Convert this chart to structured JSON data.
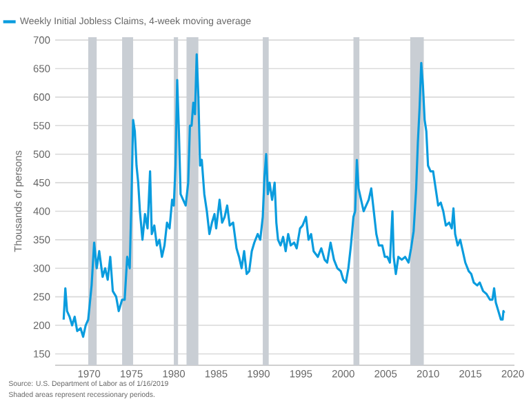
{
  "chart_data": {
    "type": "line",
    "ylabel": "Thousands of persons",
    "annotations": [
      "Source: U.S. Department of Labor as of 1/16/2019",
      "Shaded areas represent recessionary periods."
    ],
    "xlim": [
      1966,
      2020.2
    ],
    "ylim": [
      130,
      705
    ],
    "xticks": [
      1970,
      1975,
      1980,
      1985,
      1990,
      1995,
      2000,
      2005,
      2010,
      2015,
      2020
    ],
    "yticks": [
      150,
      200,
      250,
      300,
      350,
      400,
      450,
      500,
      550,
      600,
      650,
      700
    ],
    "grid": "y",
    "legend": "top left",
    "bands": [
      {
        "axis": "x",
        "from": 1969.9,
        "to": 1970.9,
        "color": "#c9ced4"
      },
      {
        "axis": "x",
        "from": 1973.9,
        "to": 1975.2,
        "color": "#c9ced4"
      },
      {
        "axis": "x",
        "from": 1980.0,
        "to": 1980.5,
        "color": "#c9ced4"
      },
      {
        "axis": "x",
        "from": 1981.5,
        "to": 1982.9,
        "color": "#c9ced4"
      },
      {
        "axis": "x",
        "from": 1990.5,
        "to": 1991.2,
        "color": "#c9ced4"
      },
      {
        "axis": "x",
        "from": 2001.2,
        "to": 2001.9,
        "color": "#c9ced4"
      },
      {
        "axis": "x",
        "from": 2007.9,
        "to": 2009.5,
        "color": "#c9ced4"
      }
    ],
    "series": [
      {
        "name": "Weekly Initial Jobless Claims, 4-week moving average",
        "color": "#0a9cde",
        "x": [
          1967.0,
          1967.2,
          1967.4,
          1967.7,
          1968.0,
          1968.3,
          1968.6,
          1969.0,
          1969.3,
          1969.6,
          1969.9,
          1970.3,
          1970.6,
          1970.9,
          1971.2,
          1971.6,
          1971.9,
          1972.2,
          1972.5,
          1972.8,
          1973.2,
          1973.5,
          1973.9,
          1974.2,
          1974.5,
          1974.8,
          1975.0,
          1975.2,
          1975.4,
          1975.6,
          1975.8,
          1976.0,
          1976.3,
          1976.6,
          1976.9,
          1977.2,
          1977.4,
          1977.7,
          1978.0,
          1978.3,
          1978.6,
          1978.9,
          1979.2,
          1979.5,
          1979.8,
          1980.0,
          1980.2,
          1980.4,
          1980.6,
          1980.8,
          1981.1,
          1981.4,
          1981.7,
          1981.9,
          1982.1,
          1982.3,
          1982.5,
          1982.7,
          1982.9,
          1983.1,
          1983.3,
          1983.6,
          1983.9,
          1984.2,
          1984.5,
          1984.8,
          1985.0,
          1985.4,
          1985.7,
          1986.0,
          1986.3,
          1986.6,
          1987.0,
          1987.4,
          1987.7,
          1988.0,
          1988.3,
          1988.6,
          1988.9,
          1989.2,
          1989.5,
          1989.9,
          1990.2,
          1990.5,
          1990.7,
          1990.9,
          1991.1,
          1991.3,
          1991.6,
          1991.9,
          1992.1,
          1992.3,
          1992.6,
          1992.9,
          1993.2,
          1993.5,
          1993.8,
          1994.2,
          1994.5,
          1994.9,
          1995.2,
          1995.6,
          1995.9,
          1996.2,
          1996.5,
          1997.0,
          1997.4,
          1997.8,
          1998.1,
          1998.5,
          1998.9,
          1999.3,
          1999.7,
          2000.0,
          2000.3,
          2000.6,
          2000.9,
          2001.2,
          2001.4,
          2001.6,
          2001.8,
          2002.1,
          2002.4,
          2002.7,
          2003.0,
          2003.3,
          2003.6,
          2003.9,
          2004.2,
          2004.6,
          2004.9,
          2005.2,
          2005.5,
          2005.8,
          2005.95,
          2006.2,
          2006.5,
          2006.9,
          2007.3,
          2007.7,
          2008.0,
          2008.3,
          2008.6,
          2008.8,
          2009.0,
          2009.2,
          2009.4,
          2009.6,
          2009.8,
          2010.0,
          2010.3,
          2010.6,
          2010.9,
          2011.2,
          2011.5,
          2011.8,
          2012.1,
          2012.5,
          2012.8,
          2013.0,
          2013.2,
          2013.5,
          2013.8,
          2014.1,
          2014.4,
          2014.8,
          2015.1,
          2015.4,
          2015.8,
          2016.1,
          2016.5,
          2016.9,
          2017.3,
          2017.6,
          2017.8,
          2018.0,
          2018.3,
          2018.6,
          2018.8,
          2018.9,
          2019.0
        ],
        "values": [
          210,
          265,
          225,
          215,
          200,
          215,
          190,
          195,
          180,
          200,
          210,
          270,
          345,
          300,
          330,
          285,
          300,
          280,
          320,
          260,
          250,
          225,
          245,
          245,
          320,
          300,
          420,
          560,
          540,
          480,
          450,
          400,
          350,
          395,
          370,
          470,
          360,
          375,
          340,
          350,
          320,
          340,
          380,
          370,
          420,
          410,
          480,
          630,
          540,
          430,
          420,
          410,
          450,
          550,
          550,
          590,
          570,
          675,
          600,
          480,
          490,
          430,
          400,
          360,
          380,
          395,
          370,
          420,
          380,
          390,
          410,
          375,
          380,
          335,
          320,
          300,
          330,
          290,
          295,
          330,
          345,
          360,
          350,
          390,
          460,
          500,
          430,
          450,
          420,
          450,
          380,
          350,
          340,
          355,
          330,
          360,
          340,
          345,
          335,
          370,
          375,
          390,
          350,
          360,
          330,
          320,
          335,
          315,
          310,
          345,
          315,
          300,
          295,
          280,
          275,
          300,
          340,
          390,
          400,
          490,
          440,
          420,
          400,
          410,
          420,
          440,
          400,
          360,
          340,
          340,
          320,
          320,
          310,
          400,
          320,
          290,
          320,
          315,
          320,
          310,
          335,
          365,
          440,
          520,
          580,
          660,
          620,
          560,
          540,
          480,
          470,
          470,
          440,
          410,
          415,
          400,
          375,
          380,
          370,
          405,
          360,
          340,
          350,
          330,
          310,
          295,
          290,
          275,
          270,
          275,
          260,
          255,
          245,
          245,
          265,
          240,
          225,
          210,
          210,
          225,
          222
        ]
      }
    ]
  }
}
